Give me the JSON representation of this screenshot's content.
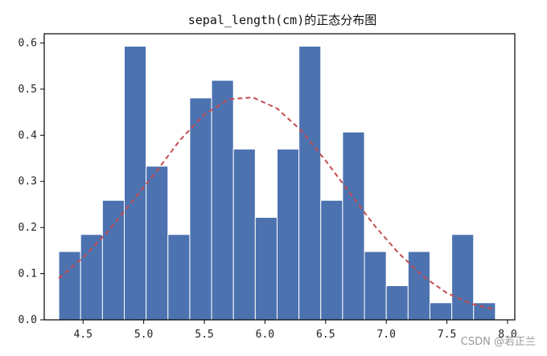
{
  "chart_data": {
    "type": "bar",
    "title": "sepal_length(cm)的正态分布图",
    "xlabel": "",
    "ylabel": "",
    "xlim": [
      4.18,
      8.06
    ],
    "ylim": [
      0,
      0.62
    ],
    "xticks": [
      4.5,
      5.0,
      5.5,
      6.0,
      6.5,
      7.0,
      7.5,
      8.0
    ],
    "xtick_labels": [
      "4.5",
      "5.0",
      "5.5",
      "6.0",
      "6.5",
      "7.0",
      "7.5",
      "8.0"
    ],
    "yticks": [
      0.0,
      0.1,
      0.2,
      0.3,
      0.4,
      0.5,
      0.6
    ],
    "ytick_labels": [
      "0.0",
      "0.1",
      "0.2",
      "0.3",
      "0.4",
      "0.5",
      "0.6"
    ],
    "bins": [
      {
        "x0": 4.3,
        "x1": 4.48,
        "value": 0.148
      },
      {
        "x0": 4.48,
        "x1": 4.66,
        "value": 0.185
      },
      {
        "x0": 4.66,
        "x1": 4.84,
        "value": 0.259
      },
      {
        "x0": 4.84,
        "x1": 5.02,
        "value": 0.593
      },
      {
        "x0": 5.02,
        "x1": 5.2,
        "value": 0.333
      },
      {
        "x0": 5.2,
        "x1": 5.38,
        "value": 0.185
      },
      {
        "x0": 5.38,
        "x1": 5.56,
        "value": 0.481
      },
      {
        "x0": 5.56,
        "x1": 5.74,
        "value": 0.519
      },
      {
        "x0": 5.74,
        "x1": 5.92,
        "value": 0.37
      },
      {
        "x0": 5.92,
        "x1": 6.1,
        "value": 0.222
      },
      {
        "x0": 6.1,
        "x1": 6.28,
        "value": 0.37
      },
      {
        "x0": 6.28,
        "x1": 6.46,
        "value": 0.593
      },
      {
        "x0": 6.46,
        "x1": 6.64,
        "value": 0.259
      },
      {
        "x0": 6.64,
        "x1": 6.82,
        "value": 0.407
      },
      {
        "x0": 6.82,
        "x1": 7.0,
        "value": 0.148
      },
      {
        "x0": 7.0,
        "x1": 7.18,
        "value": 0.074
      },
      {
        "x0": 7.18,
        "x1": 7.36,
        "value": 0.148
      },
      {
        "x0": 7.36,
        "x1": 7.54,
        "value": 0.037
      },
      {
        "x0": 7.54,
        "x1": 7.72,
        "value": 0.185
      },
      {
        "x0": 7.72,
        "x1": 7.9,
        "value": 0.037
      }
    ],
    "curve": {
      "x": [
        4.3,
        4.5,
        4.7,
        4.9,
        5.1,
        5.3,
        5.5,
        5.7,
        5.9,
        6.1,
        6.3,
        6.5,
        6.7,
        6.9,
        7.1,
        7.3,
        7.5,
        7.7,
        7.9
      ],
      "y": [
        0.09,
        0.135,
        0.19,
        0.255,
        0.32,
        0.39,
        0.445,
        0.478,
        0.482,
        0.458,
        0.41,
        0.345,
        0.275,
        0.205,
        0.145,
        0.095,
        0.058,
        0.035,
        0.022
      ]
    },
    "grid": false,
    "colors": {
      "bars": "#4c72b0",
      "bar_edge": "#ffffff",
      "curve": "#c44e52",
      "axes": "#000000"
    }
  },
  "watermark": "CSDN @若正兰"
}
